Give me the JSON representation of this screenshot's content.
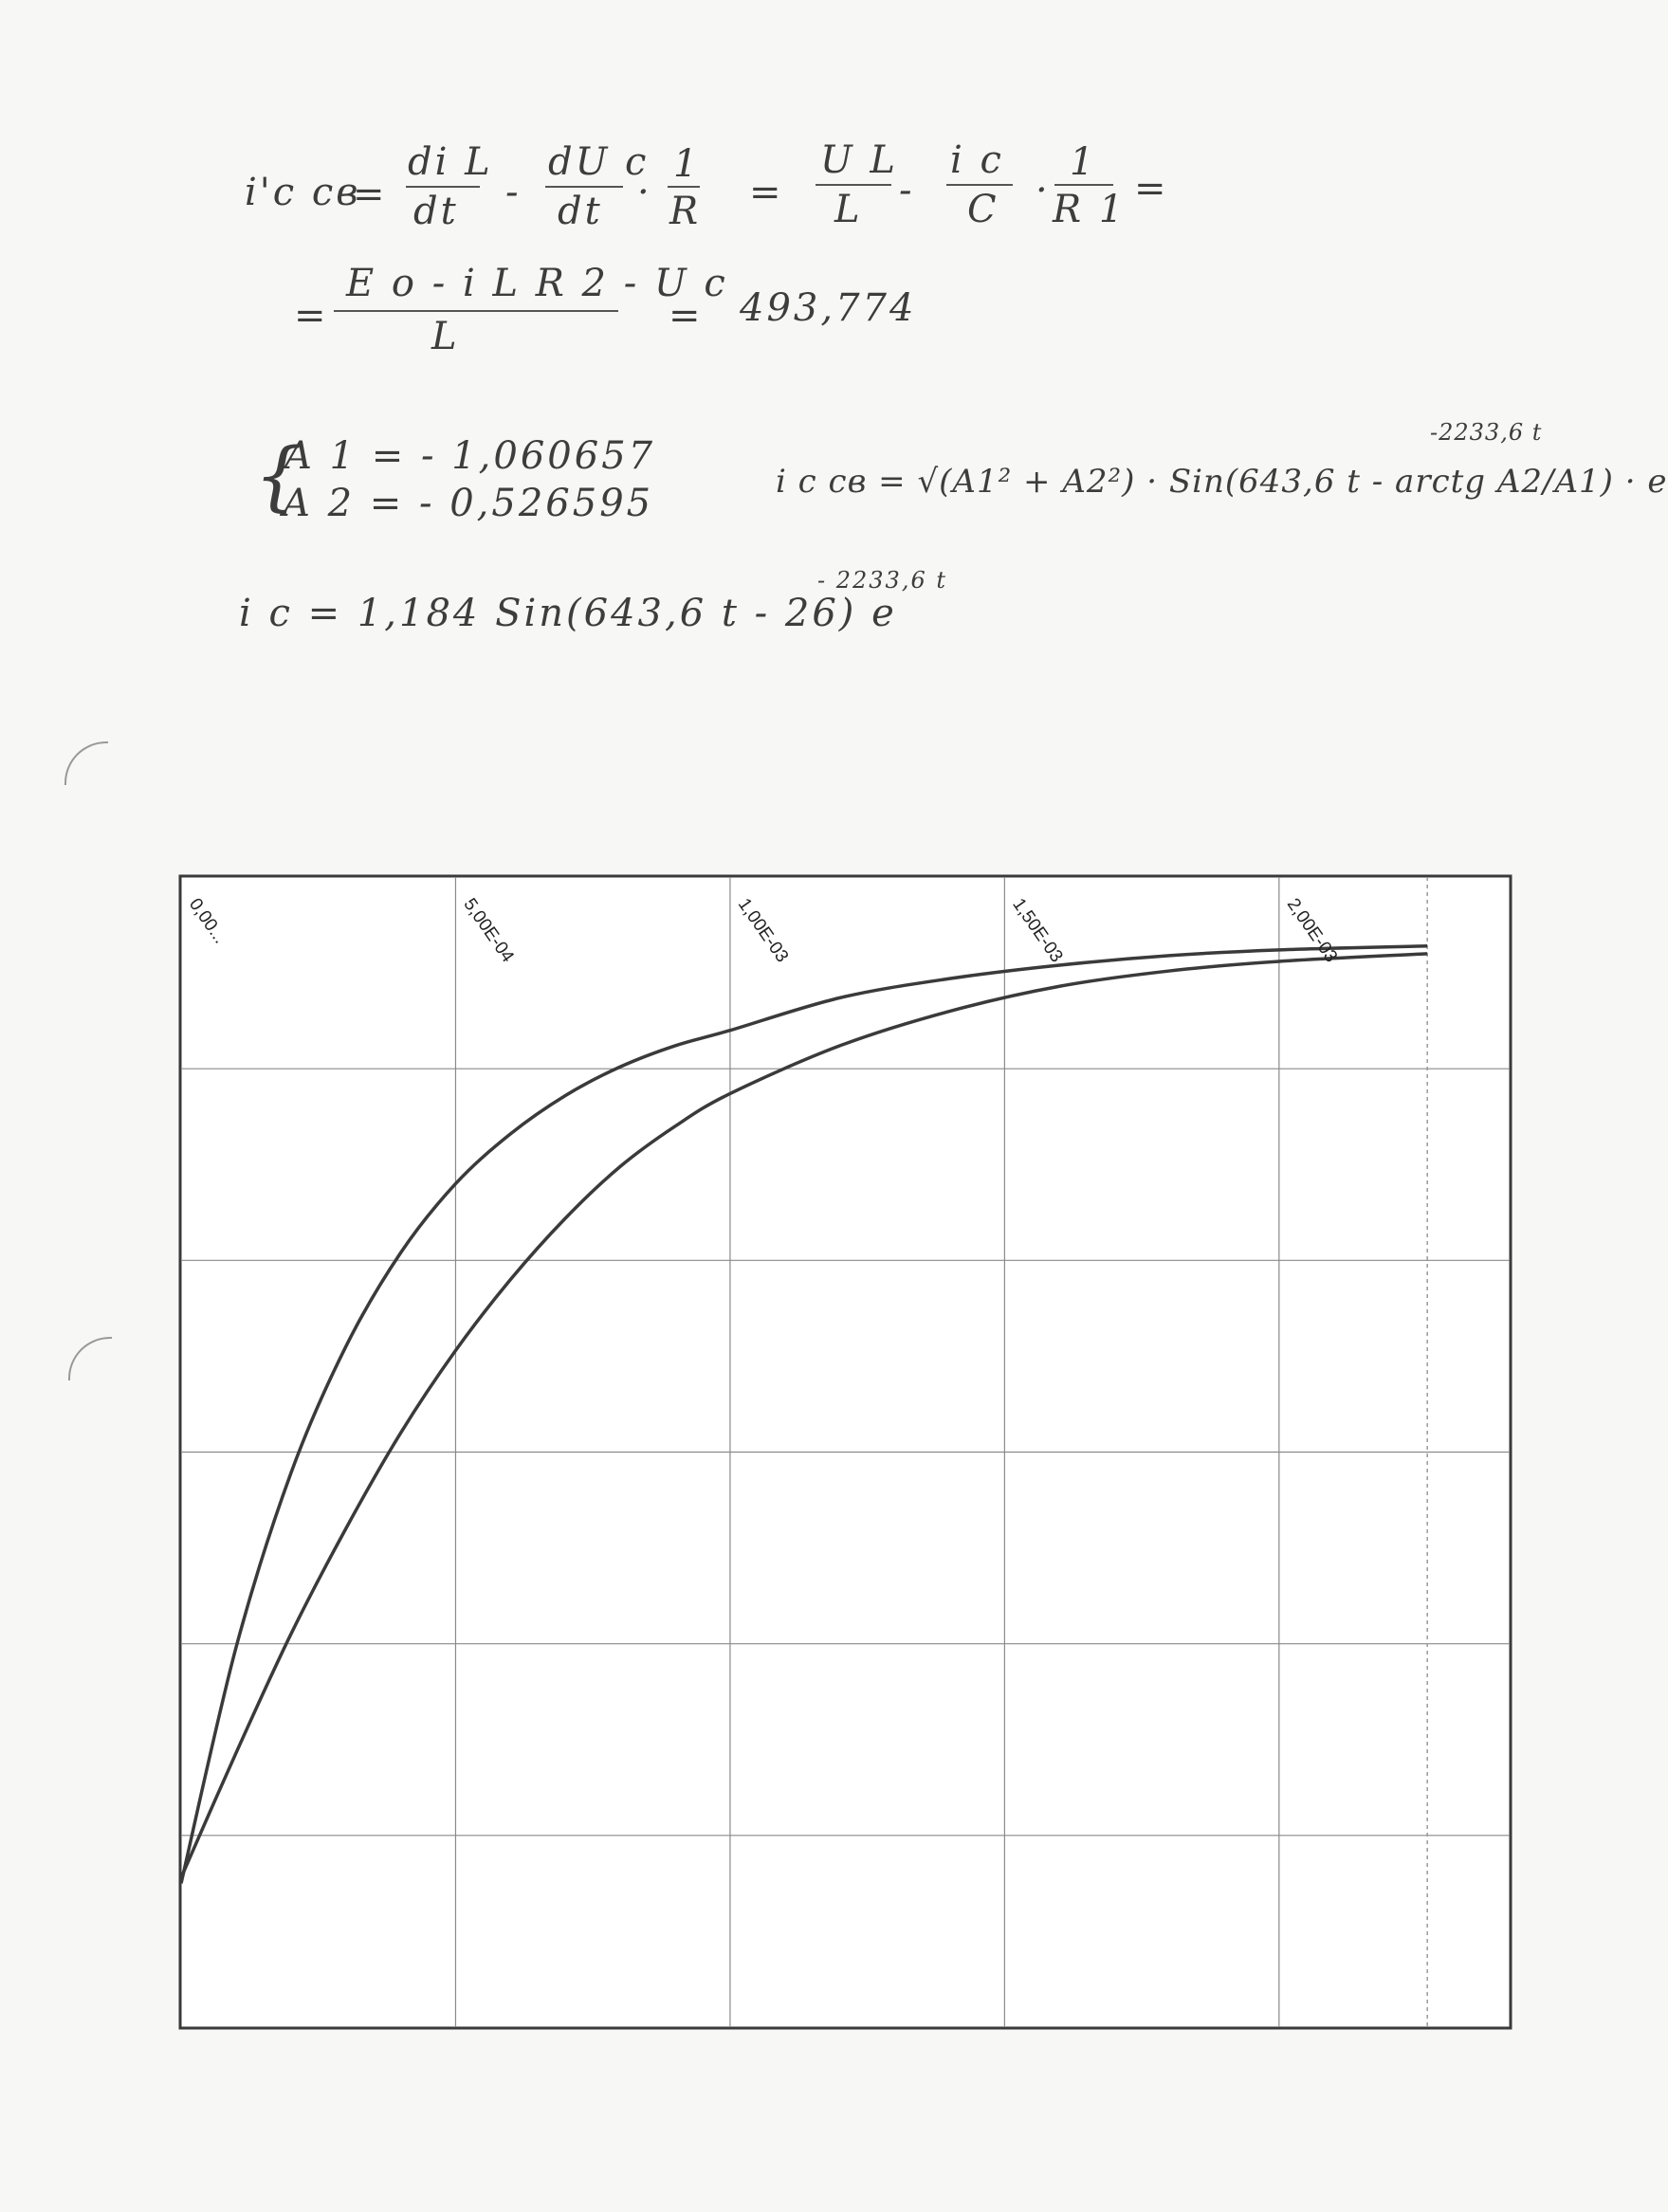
{
  "equations": {
    "line1": {
      "lhs": "i'c св",
      "t1_num": "di L",
      "t1_den": "dt",
      "minus1": "-",
      "t2_num": "dU c",
      "t2_den": "dt",
      "dot1": "·",
      "t3_num": "1",
      "t3_den": "R",
      "eq2": "=",
      "t4_num": "U L",
      "t4_den": "L",
      "minus2": "-",
      "t5_num": "i c",
      "t5_den": "C",
      "dot2": "·",
      "t6_num": "1",
      "t6_den": "R 1",
      "eq3": "=",
      "eq1": "="
    },
    "line2": {
      "eq_lead": "=",
      "num": "E o - i L R 2 - U c",
      "den": "L",
      "eq": "=",
      "value": "493,774"
    },
    "system": {
      "brace": "{",
      "a1": "A 1 = - 1,060657",
      "a2": "A 2 = - 0,526595"
    },
    "general": {
      "text": "i c св = √(A1² + A2²) · Sin(643,6 t - arctg A2/A1) · e",
      "exponent": "-2233,6 t"
    },
    "final": {
      "text": "i c = 1,184 Sin(643,6 t - 26) e",
      "exponent": "- 2233,6 t"
    }
  },
  "chart_data": {
    "type": "line",
    "title": "",
    "xlabel": "",
    "ylabel": "",
    "x_tick_labels": [
      "0,00...",
      "5,00E-04",
      "1,00E-03",
      "1,50E-03",
      "2,00E-03"
    ],
    "x_ticks": [
      0,
      0.0005,
      0.001,
      0.0015,
      0.002
    ],
    "xlim": [
      0,
      0.00242
    ],
    "ylim": [
      0,
      6
    ],
    "grid": true,
    "series": [
      {
        "x": [
          0,
          0.0001,
          0.0002,
          0.0003,
          0.0004,
          0.0005,
          0.0006,
          0.0007,
          0.0008,
          0.0009,
          0.001,
          0.0012,
          0.0014,
          0.0016,
          0.0018,
          0.002,
          0.00227
        ],
        "values": [
          0.75,
          1.98,
          2.89,
          3.55,
          4.04,
          4.4,
          4.66,
          4.86,
          5.01,
          5.12,
          5.2,
          5.37,
          5.47,
          5.54,
          5.59,
          5.62,
          5.64
        ]
      },
      {
        "x": [
          0,
          0.0001,
          0.0002,
          0.0003,
          0.0004,
          0.0005,
          0.0006,
          0.0007,
          0.0008,
          0.0009,
          0.001,
          0.0012,
          0.0014,
          0.0016,
          0.0018,
          0.002,
          0.00227
        ],
        "values": [
          0.78,
          1.43,
          2.05,
          2.6,
          3.1,
          3.53,
          3.9,
          4.22,
          4.49,
          4.7,
          4.87,
          5.12,
          5.3,
          5.43,
          5.51,
          5.56,
          5.6
        ]
      }
    ],
    "colors": [
      "#3a3a3a",
      "#3a3a3a"
    ]
  }
}
